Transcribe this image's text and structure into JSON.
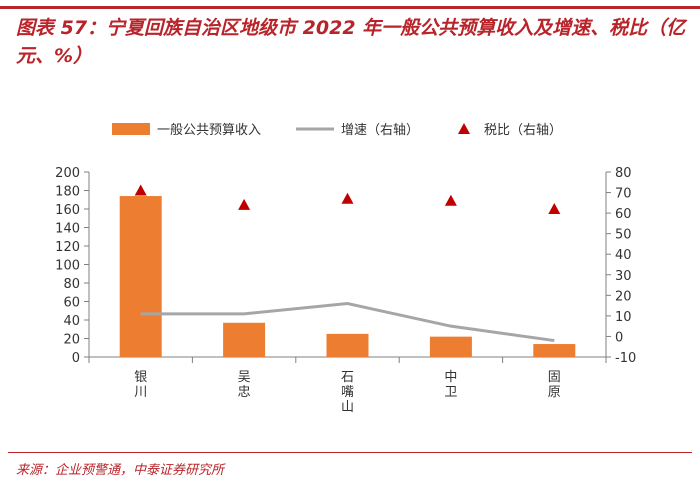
{
  "title": "图表 57：宁夏回族自治区地级市 2022 年一般公共预算收入及增速、税比（亿元、%）",
  "source": "来源：企业预警通，中泰证券研究所",
  "colors": {
    "bar": "#ed7d31",
    "line": "#a6a6a6",
    "marker": "#c00000",
    "accent": "#b8242a",
    "axis": "#808080"
  },
  "chart_data": {
    "type": "bar",
    "categories": [
      "银川",
      "吴忠",
      "石嘴山",
      "中卫",
      "固原"
    ],
    "ylim": [
      0,
      200
    ],
    "yticks": [
      0,
      20,
      40,
      60,
      80,
      100,
      120,
      140,
      160,
      180,
      200
    ],
    "y2lim": [
      -10,
      80
    ],
    "y2ticks": [
      -10,
      0,
      10,
      20,
      30,
      40,
      50,
      60,
      70,
      80
    ],
    "legend_position": "top",
    "series": [
      {
        "name": "一般公共预算收入",
        "type": "bar",
        "axis": "left",
        "values": [
          174,
          37,
          25,
          22,
          14
        ]
      },
      {
        "name": "增速（右轴）",
        "type": "line",
        "axis": "right",
        "values": [
          11,
          11,
          16,
          5,
          -2
        ]
      },
      {
        "name": "税比（右轴）",
        "type": "scatter",
        "axis": "right",
        "values": [
          71,
          64,
          67,
          66,
          62
        ]
      }
    ]
  }
}
